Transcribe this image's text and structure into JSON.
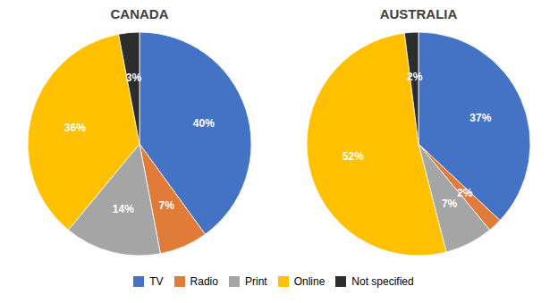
{
  "chart_data": [
    {
      "type": "pie",
      "title": "CANADA",
      "categories": [
        "TV",
        "Radio",
        "Print",
        "Online",
        "Not specified"
      ],
      "values": [
        40,
        7,
        14,
        36,
        3
      ],
      "value_labels": [
        "40%",
        "7%",
        "14%",
        "36%",
        "3%"
      ],
      "colors": [
        "#4472C4",
        "#E07B39",
        "#A5A5A5",
        "#FFC000",
        "#2D2D2D"
      ],
      "data_labels": true,
      "legend": "bottom"
    },
    {
      "type": "pie",
      "title": "AUSTRALIA",
      "categories": [
        "TV",
        "Radio",
        "Print",
        "Online",
        "Not specified"
      ],
      "values": [
        37,
        2,
        7,
        52,
        2
      ],
      "value_labels": [
        "37%",
        "2%",
        "7%",
        "52%",
        "2%"
      ],
      "colors": [
        "#4472C4",
        "#E07B39",
        "#A5A5A5",
        "#FFC000",
        "#2D2D2D"
      ],
      "data_labels": true,
      "legend": "bottom"
    }
  ]
}
